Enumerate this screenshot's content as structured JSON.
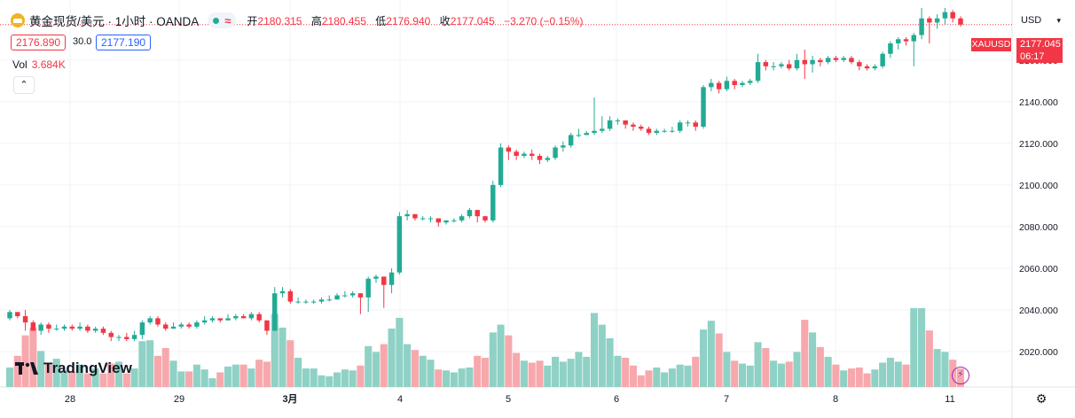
{
  "header": {
    "symbol_title": "黄金现货/美元 · 1小时 · OANDA",
    "ohlc": [
      {
        "key": "开",
        "value": "2180.315"
      },
      {
        "key": "高",
        "value": "2180.455"
      },
      {
        "key": "低",
        "value": "2176.940"
      },
      {
        "key": "收",
        "value": "2177.045"
      }
    ],
    "change": "−3.270 (−0.15%)",
    "icons": [
      "gold-coin-icon",
      "market-status-dot-icon",
      "wave-icon"
    ]
  },
  "trade": {
    "sell_price": "2176.890",
    "spread": "30.0",
    "buy_price": "2177.190"
  },
  "volume": {
    "label": "Vol",
    "value": "3.684K"
  },
  "currency": "USD",
  "last_price": {
    "symbol": "XAUUSD",
    "price": "2177.045",
    "countdown": "06:17"
  },
  "brand": "TradingView",
  "colors": {
    "up": "#22ab94",
    "down": "#f23645",
    "up_vol": "#8fd1c5",
    "down_vol": "#f7a8ad"
  },
  "chart_data": {
    "type": "candlestick",
    "ylim": [
      2003,
      2185
    ],
    "y_ticks": [
      2020,
      2040,
      2060,
      2080,
      2100,
      2120,
      2140,
      2160
    ],
    "x_labels": [
      "28",
      "29",
      "3月",
      "4",
      "5",
      "6",
      "7",
      "8",
      "11"
    ],
    "last_price": 2177.045,
    "candles": [
      [
        2036,
        2039,
        2040,
        2035,
        0.2
      ],
      [
        2039,
        2037,
        2039,
        2036,
        0.32
      ],
      [
        2037,
        2034,
        2040,
        2030,
        0.53
      ],
      [
        2034,
        2030,
        2035,
        2030,
        0.61
      ],
      [
        2030,
        2033,
        2034,
        2028,
        0.37
      ],
      [
        2033,
        2031,
        2034,
        2029,
        0.23
      ],
      [
        2031,
        2031,
        2033,
        2030,
        0.29
      ],
      [
        2031,
        2032,
        2033,
        2030,
        0.17
      ],
      [
        2032,
        2031,
        2033,
        2030,
        0.16
      ],
      [
        2031,
        2032,
        2034,
        2030,
        0.23
      ],
      [
        2032,
        2030,
        2033,
        2029,
        0.14
      ],
      [
        2030,
        2031,
        2032,
        2029,
        0.19
      ],
      [
        2031,
        2029,
        2032,
        2028,
        0.14
      ],
      [
        2029,
        2027,
        2030,
        2025,
        0.24
      ],
      [
        2027,
        2027,
        2028,
        2025,
        0.26
      ],
      [
        2027,
        2026,
        2029,
        2025,
        0.14
      ],
      [
        2026,
        2028,
        2030,
        2025,
        0.19
      ],
      [
        2028,
        2034,
        2035,
        2026,
        0.47
      ],
      [
        2034,
        2036,
        2037,
        2033,
        0.48
      ],
      [
        2036,
        2033,
        2037,
        2032,
        0.32
      ],
      [
        2033,
        2031,
        2034,
        2030,
        0.4
      ],
      [
        2031,
        2032,
        2034,
        2031,
        0.27
      ],
      [
        2032,
        2033,
        2034,
        2031,
        0.16
      ],
      [
        2033,
        2032,
        2034,
        2031,
        0.16
      ],
      [
        2032,
        2034,
        2035,
        2031,
        0.23
      ],
      [
        2034,
        2035,
        2037,
        2033,
        0.18
      ],
      [
        2035,
        2036,
        2037,
        2034,
        0.09
      ],
      [
        2036,
        2035,
        2036,
        2034,
        0.15
      ],
      [
        2035,
        2036,
        2038,
        2035,
        0.21
      ],
      [
        2036,
        2037,
        2038,
        2035,
        0.23
      ],
      [
        2037,
        2036,
        2038,
        2036,
        0.23
      ],
      [
        2036,
        2038,
        2039,
        2035,
        0.19
      ],
      [
        2038,
        2035,
        2039,
        2034,
        0.28
      ],
      [
        2035,
        2030,
        2035,
        2028,
        0.26
      ],
      [
        2030,
        2048,
        2051,
        2030,
        0.75
      ],
      [
        2048,
        2049,
        2051,
        2046,
        0.61
      ],
      [
        2049,
        2044,
        2050,
        2043,
        0.48
      ],
      [
        2044,
        2044,
        2046,
        2043,
        0.3
      ],
      [
        2044,
        2044,
        2045,
        2043,
        0.19
      ],
      [
        2044,
        2044,
        2045,
        2043,
        0.19
      ],
      [
        2044,
        2045,
        2046,
        2043,
        0.12
      ],
      [
        2045,
        2045,
        2047,
        2044,
        0.11
      ],
      [
        2045,
        2047,
        2048,
        2045,
        0.15
      ],
      [
        2047,
        2047,
        2049,
        2046,
        0.18
      ],
      [
        2047,
        2048,
        2049,
        2046,
        0.17
      ],
      [
        2048,
        2046,
        2048,
        2038,
        0.22
      ],
      [
        2046,
        2055,
        2056,
        2039,
        0.42
      ],
      [
        2055,
        2056,
        2057,
        2053,
        0.36
      ],
      [
        2056,
        2052,
        2056,
        2041,
        0.44
      ],
      [
        2052,
        2058,
        2060,
        2048,
        0.6
      ],
      [
        2058,
        2085,
        2087,
        2057,
        0.71
      ],
      [
        2085,
        2086,
        2088,
        2083,
        0.44
      ],
      [
        2086,
        2084,
        2086,
        2083,
        0.38
      ],
      [
        2084,
        2084,
        2085,
        2083,
        0.32
      ],
      [
        2084,
        2084,
        2085,
        2082,
        0.28
      ],
      [
        2084,
        2082,
        2084,
        2080,
        0.18
      ],
      [
        2082,
        2083,
        2083,
        2081,
        0.17
      ],
      [
        2083,
        2083,
        2084,
        2082,
        0.15
      ],
      [
        2083,
        2085,
        2086,
        2082,
        0.19
      ],
      [
        2085,
        2088,
        2089,
        2084,
        0.2
      ],
      [
        2088,
        2085,
        2088,
        2082,
        0.32
      ],
      [
        2085,
        2083,
        2085,
        2082,
        0.3
      ],
      [
        2083,
        2100,
        2102,
        2082,
        0.56
      ],
      [
        2100,
        2118,
        2120,
        2099,
        0.64
      ],
      [
        2118,
        2116,
        2119,
        2112,
        0.53
      ],
      [
        2116,
        2114,
        2117,
        2112,
        0.35
      ],
      [
        2114,
        2115,
        2116,
        2113,
        0.27
      ],
      [
        2115,
        2114,
        2117,
        2112,
        0.25
      ],
      [
        2114,
        2112,
        2115,
        2110,
        0.27
      ],
      [
        2112,
        2113,
        2114,
        2111,
        0.22
      ],
      [
        2113,
        2118,
        2119,
        2112,
        0.31
      ],
      [
        2118,
        2119,
        2121,
        2116,
        0.26
      ],
      [
        2119,
        2124,
        2125,
        2118,
        0.29
      ],
      [
        2124,
        2124,
        2127,
        2123,
        0.36
      ],
      [
        2124,
        2125,
        2126,
        2124,
        0.31
      ],
      [
        2125,
        2126,
        2142,
        2124,
        0.76
      ],
      [
        2126,
        2127,
        2133,
        2125,
        0.64
      ],
      [
        2127,
        2131,
        2133,
        2126,
        0.5
      ],
      [
        2131,
        2131,
        2132,
        2129,
        0.32
      ],
      [
        2131,
        2129,
        2131,
        2127,
        0.3
      ],
      [
        2129,
        2128,
        2130,
        2126,
        0.22
      ],
      [
        2128,
        2127,
        2129,
        2126,
        0.12
      ],
      [
        2127,
        2125,
        2128,
        2124,
        0.17
      ],
      [
        2125,
        2126,
        2127,
        2124,
        0.2
      ],
      [
        2126,
        2126,
        2127,
        2125,
        0.15
      ],
      [
        2126,
        2126,
        2128,
        2125,
        0.19
      ],
      [
        2126,
        2130,
        2131,
        2125,
        0.23
      ],
      [
        2130,
        2130,
        2131,
        2128,
        0.22
      ],
      [
        2130,
        2128,
        2131,
        2126,
        0.31
      ],
      [
        2128,
        2147,
        2148,
        2127,
        0.59
      ],
      [
        2147,
        2149,
        2151,
        2145,
        0.68
      ],
      [
        2149,
        2146,
        2150,
        2144,
        0.55
      ],
      [
        2146,
        2150,
        2152,
        2145,
        0.36
      ],
      [
        2150,
        2148,
        2151,
        2146,
        0.27
      ],
      [
        2148,
        2149,
        2150,
        2147,
        0.24
      ],
      [
        2149,
        2150,
        2151,
        2148,
        0.22
      ],
      [
        2150,
        2159,
        2163,
        2149,
        0.46
      ],
      [
        2159,
        2157,
        2160,
        2155,
        0.4
      ],
      [
        2157,
        2157,
        2159,
        2155,
        0.27
      ],
      [
        2157,
        2158,
        2159,
        2156,
        0.24
      ],
      [
        2158,
        2156,
        2160,
        2155,
        0.26
      ],
      [
        2156,
        2160,
        2163,
        2155,
        0.36
      ],
      [
        2160,
        2158,
        2165,
        2151,
        0.69
      ],
      [
        2158,
        2160,
        2162,
        2154,
        0.56
      ],
      [
        2160,
        2159,
        2161,
        2157,
        0.41
      ],
      [
        2159,
        2161,
        2162,
        2158,
        0.31
      ],
      [
        2161,
        2160,
        2162,
        2159,
        0.23
      ],
      [
        2160,
        2161,
        2162,
        2159,
        0.17
      ],
      [
        2161,
        2159,
        2162,
        2158,
        0.19
      ],
      [
        2159,
        2157,
        2160,
        2155,
        0.2
      ],
      [
        2157,
        2156,
        2158,
        2155,
        0.14
      ],
      [
        2156,
        2157,
        2158,
        2155,
        0.18
      ],
      [
        2157,
        2163,
        2164,
        2156,
        0.25
      ],
      [
        2163,
        2168,
        2169,
        2161,
        0.3
      ],
      [
        2168,
        2170,
        2171,
        2165,
        0.26
      ],
      [
        2170,
        2169,
        2171,
        2167,
        0.23
      ],
      [
        2169,
        2172,
        2173,
        2157,
        0.81
      ],
      [
        2172,
        2180,
        2185,
        2170,
        0.81
      ],
      [
        2180,
        2178,
        2181,
        2168,
        0.58
      ],
      [
        2178,
        2180,
        2182,
        2175,
        0.39
      ],
      [
        2180,
        2183,
        2185,
        2177,
        0.36
      ],
      [
        2183,
        2180,
        2184,
        2178,
        0.28
      ],
      [
        2180,
        2177,
        2181,
        2176,
        0.19
      ]
    ]
  }
}
